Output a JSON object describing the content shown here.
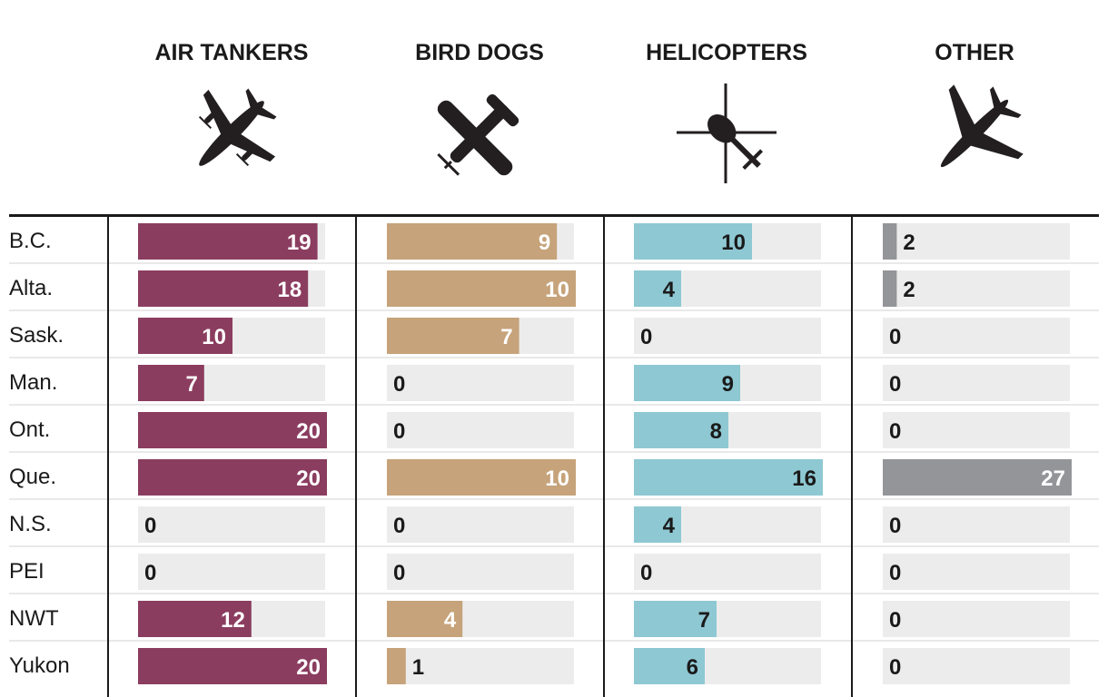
{
  "chart_data": {
    "type": "bar",
    "orientation": "horizontal",
    "layout": "small-multiples",
    "title": "",
    "categories": [
      "B.C.",
      "Alta.",
      "Sask.",
      "Man.",
      "Ont.",
      "Que.",
      "N.S.",
      "PEI",
      "NWT",
      "Yukon"
    ],
    "series": [
      {
        "name": "AIR TANKERS",
        "icon": "air-tanker-icon",
        "color": "#8b3d5f",
        "max": 20,
        "values": [
          19,
          18,
          10,
          7,
          20,
          20,
          0,
          0,
          12,
          20
        ]
      },
      {
        "name": "BIRD DOGS",
        "icon": "bird-dog-icon",
        "color": "#c6a37a",
        "max": 10,
        "values": [
          9,
          10,
          7,
          0,
          0,
          10,
          0,
          0,
          4,
          1
        ]
      },
      {
        "name": "HELICOPTERS",
        "icon": "helicopter-icon",
        "color": "#8ec8d3",
        "max": 16,
        "values": [
          10,
          4,
          0,
          9,
          8,
          16,
          4,
          0,
          7,
          6
        ]
      },
      {
        "name": "OTHER",
        "icon": "plane-icon",
        "color": "#939598",
        "max": 27,
        "values": [
          2,
          2,
          0,
          0,
          0,
          27,
          0,
          0,
          0,
          0
        ]
      }
    ],
    "track_color": "#ececec"
  }
}
